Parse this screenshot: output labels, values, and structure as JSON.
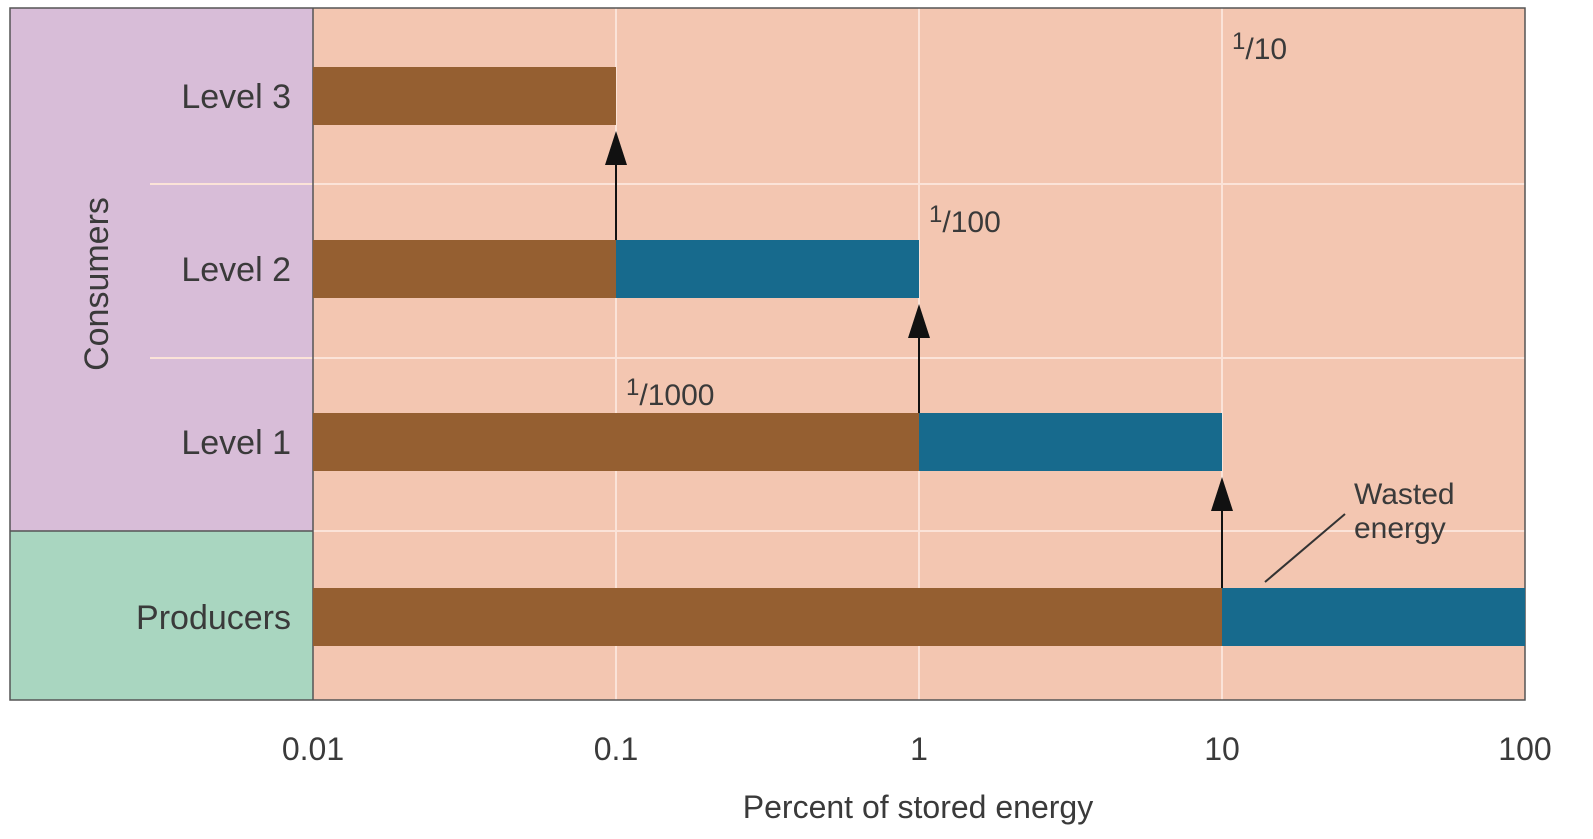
{
  "chart_data": {
    "type": "bar",
    "orientation": "horizontal",
    "x_scale": "log",
    "xlabel": "Percent of stored energy",
    "xlim": [
      0.01,
      100
    ],
    "x_ticks": [
      "0.01",
      "0.1",
      "1",
      "10",
      "100"
    ],
    "grid": true,
    "groups": [
      {
        "name": "Consumers",
        "color": "#d8bdd8",
        "levels": [
          "Level 3",
          "Level 2",
          "Level 1"
        ]
      },
      {
        "name": "Producers",
        "color": "#a9d6c0",
        "levels": [
          "Producers"
        ]
      }
    ],
    "rows": [
      {
        "label": "Level 3",
        "stored_to": 0.1,
        "wasted_from": null,
        "wasted_to": null
      },
      {
        "label": "Level 2",
        "stored_to": 0.1,
        "wasted_from": 0.1,
        "wasted_to": 1
      },
      {
        "label": "Level 1",
        "stored_to": 1,
        "wasted_from": 1,
        "wasted_to": 10
      },
      {
        "label": "Producers",
        "stored_to": 10,
        "wasted_from": 10,
        "wasted_to": 100
      }
    ],
    "fractions": [
      {
        "num": "1",
        "den": "1000",
        "at": 0.1
      },
      {
        "num": "1",
        "den": "100",
        "at": 1
      },
      {
        "num": "1",
        "den": "10",
        "at": 10
      }
    ],
    "transfers": [
      {
        "at": 0.1,
        "from_row": "Level 2",
        "to_row": "Level 3"
      },
      {
        "at": 1,
        "from_row": "Level 1",
        "to_row": "Level 2"
      },
      {
        "at": 10,
        "from_row": "Producers",
        "to_row": "Level 1"
      }
    ],
    "annotation": {
      "line1": "Wasted",
      "line2": "energy"
    },
    "colors": {
      "plot_bg": "#f3c6b1",
      "stored": "#955f31",
      "wasted": "#176a8d",
      "grid": "#fbe3d8",
      "axis": "#555555"
    }
  }
}
